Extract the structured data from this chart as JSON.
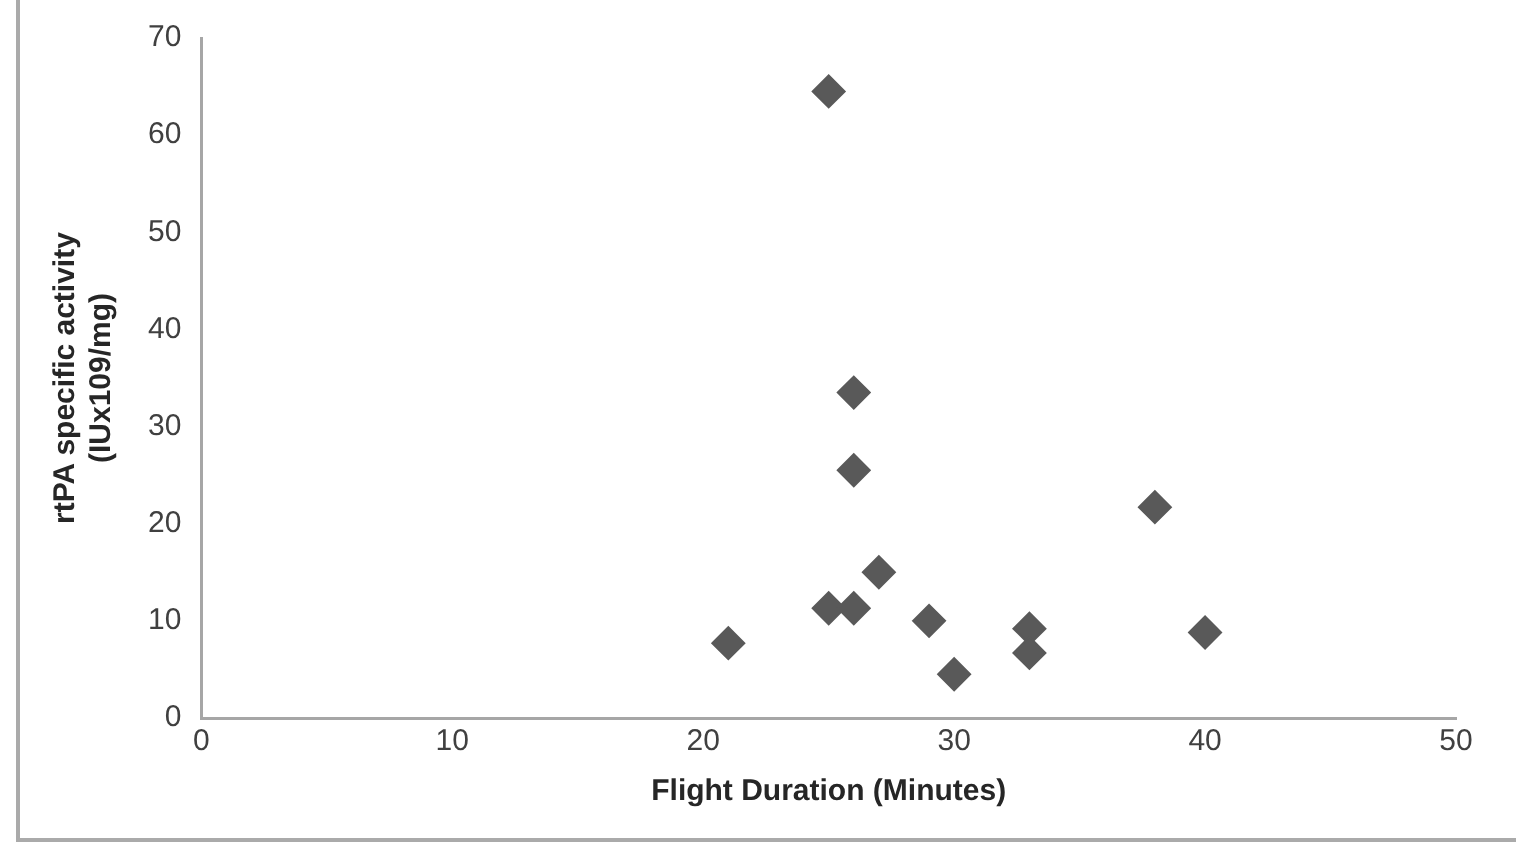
{
  "chart_data": {
    "type": "scatter",
    "xlabel": "Flight Duration (Minutes)",
    "ylabel": "rtPA specific activity\n(IUx109/mg)",
    "series": [
      {
        "color": "#595959",
        "x": [
          25,
          26,
          26,
          27,
          25,
          26,
          29,
          33,
          33,
          40,
          38,
          21,
          30
        ],
        "values": [
          64.5,
          33.5,
          25.5,
          15,
          11.3,
          11.3,
          10,
          9.2,
          6.7,
          8.8,
          21.7,
          7.7,
          4.5
        ]
      }
    ],
    "xlim": [
      0,
      50
    ],
    "xticks": [
      0,
      10,
      20,
      30,
      40,
      50
    ],
    "ylim": [
      0,
      70
    ],
    "yticks": [
      0,
      10,
      20,
      30,
      40,
      50,
      60,
      70
    ],
    "grid": false,
    "legend": false,
    "marker": "diamond"
  }
}
